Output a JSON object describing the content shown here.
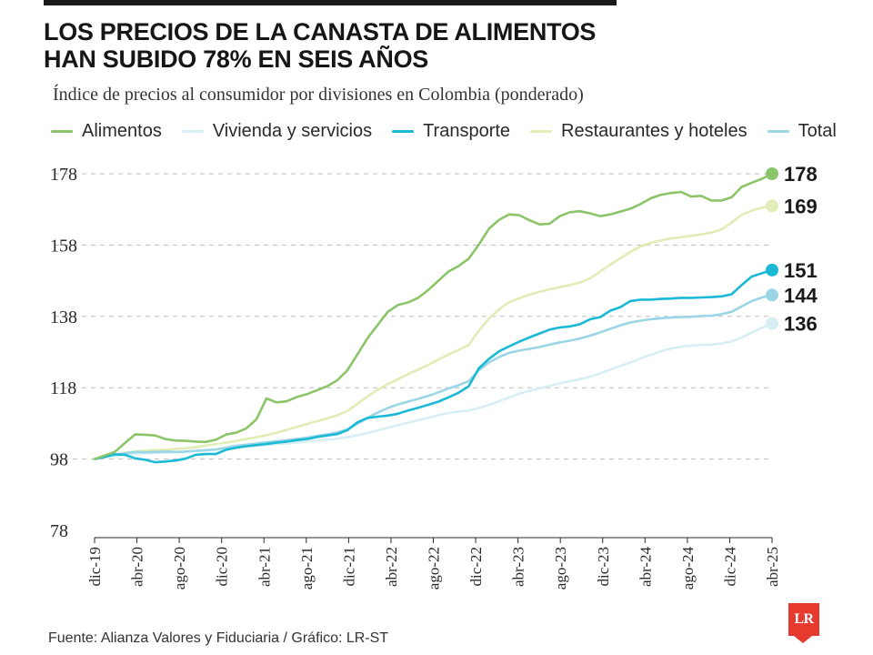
{
  "header": {
    "title_line1": "LOS PRECIOS DE LA CANASTA DE ALIMENTOS",
    "title_line2": "HAN SUBIDO 78% EN SEIS AÑOS",
    "subtitle": "Índice de precios al consumidor por divisiones en Colombia (ponderado)"
  },
  "footer": {
    "source": "Fuente: Alianza Valores y Fiduciaria / Gráfico: LR-ST",
    "logo": "LR"
  },
  "colors": {
    "alimentos": "#8cc46a",
    "vivienda": "#d7eef3",
    "transporte": "#1bb9d6",
    "restaurantes": "#e1ecb6",
    "total": "#9bd6e6",
    "grid": "#bdbdbd",
    "text": "#1a1a1a"
  },
  "chart_data": {
    "type": "line",
    "ylim": [
      78,
      178
    ],
    "yticks": [
      78,
      98,
      118,
      138,
      158,
      178
    ],
    "x_tick_labels": [
      "dic-19",
      "abr-20",
      "ago-20",
      "dic-20",
      "abr-21",
      "ago-21",
      "dic-21",
      "abr-22",
      "ago-22",
      "dic-22",
      "abr-23",
      "ago-23",
      "dic-23",
      "abr-24",
      "ago-24",
      "dic-24",
      "abr-25"
    ],
    "x_start": "dic-19",
    "x_end": "abr-25",
    "grid": true,
    "legend_position": "top",
    "series": [
      {
        "name": "Alimentos",
        "key": "alimentos",
        "end_label": "178",
        "values": [
          98.0,
          99.0,
          100.0,
          102.5,
          104.9,
          104.8,
          104.6,
          103.6,
          103.2,
          103.1,
          102.9,
          102.8,
          103.4,
          104.9,
          105.4,
          106.6,
          109.1,
          115.0,
          113.9,
          114.2,
          115.4,
          116.2,
          117.3,
          118.4,
          120.1,
          122.9,
          127.4,
          131.9,
          135.6,
          139.3,
          141.2,
          141.9,
          143.2,
          145.4,
          148.0,
          150.6,
          152.1,
          154.2,
          158.1,
          162.6,
          165.1,
          166.6,
          166.4,
          165.0,
          163.8,
          164.0,
          166.1,
          167.2,
          167.5,
          166.9,
          166.1,
          166.6,
          167.4,
          168.2,
          169.5,
          171.1,
          172.1,
          172.6,
          172.9,
          171.6,
          171.8,
          170.5,
          170.5,
          171.4,
          174.3,
          175.5,
          176.6,
          178.0
        ]
      },
      {
        "name": "Vivienda y servicios",
        "key": "vivienda",
        "end_label": "136",
        "values": [
          98.0,
          98.4,
          98.8,
          99.2,
          99.5,
          99.6,
          99.7,
          99.8,
          99.9,
          100.1,
          100.2,
          100.4,
          100.6,
          100.9,
          101.2,
          101.5,
          101.8,
          102.0,
          102.2,
          102.4,
          102.6,
          102.9,
          103.2,
          103.4,
          103.7,
          104.1,
          104.7,
          105.3,
          106.0,
          106.8,
          107.5,
          108.2,
          108.9,
          109.6,
          110.3,
          110.9,
          111.3,
          111.6,
          112.3,
          113.2,
          114.2,
          115.3,
          116.3,
          117.1,
          117.8,
          118.5,
          119.2,
          119.8,
          120.4,
          121.1,
          122.0,
          123.1,
          124.1,
          125.1,
          126.2,
          127.2,
          128.2,
          129.0,
          129.5,
          129.8,
          130.0,
          130.1,
          130.4,
          131.0,
          132.0,
          133.5,
          134.8,
          136.0
        ]
      },
      {
        "name": "Transporte",
        "key": "transporte",
        "end_label": "151",
        "values": [
          98.0,
          98.6,
          99.3,
          99.2,
          98.2,
          97.8,
          97.1,
          97.3,
          97.6,
          98.1,
          99.2,
          99.4,
          99.4,
          100.6,
          101.2,
          101.6,
          101.9,
          102.2,
          102.6,
          102.9,
          103.3,
          103.6,
          104.2,
          104.6,
          105.0,
          106.1,
          108.3,
          109.5,
          109.9,
          110.2,
          110.7,
          111.6,
          112.4,
          113.2,
          114.1,
          115.3,
          116.6,
          118.4,
          123.4,
          126.1,
          128.2,
          129.6,
          130.9,
          132.1,
          133.2,
          134.3,
          134.9,
          135.2,
          135.8,
          137.2,
          137.8,
          139.6,
          140.6,
          142.3,
          142.7,
          142.7,
          142.9,
          143.0,
          143.2,
          143.2,
          143.3,
          143.4,
          143.6,
          144.2,
          146.8,
          149.2,
          150.1,
          151.0
        ]
      },
      {
        "name": "Restaurantes y hoteles",
        "key": "restaurantes",
        "end_label": "169",
        "values": [
          98.0,
          98.7,
          99.3,
          99.8,
          100.1,
          100.3,
          100.5,
          100.6,
          100.8,
          101.0,
          101.3,
          101.8,
          102.2,
          102.6,
          103.1,
          103.6,
          104.1,
          104.7,
          105.4,
          106.2,
          107.0,
          107.8,
          108.6,
          109.4,
          110.3,
          111.5,
          113.5,
          115.6,
          117.4,
          119.0,
          120.4,
          121.8,
          123.1,
          124.4,
          125.9,
          127.3,
          128.6,
          130.0,
          134.0,
          137.4,
          140.0,
          142.0,
          143.1,
          144.1,
          144.9,
          145.6,
          146.2,
          146.8,
          147.5,
          148.7,
          150.6,
          152.5,
          154.3,
          156.1,
          157.6,
          158.6,
          159.3,
          159.9,
          160.2,
          160.6,
          161.0,
          161.5,
          162.4,
          164.3,
          166.5,
          167.7,
          168.5,
          169.0
        ]
      },
      {
        "name": "Total",
        "key": "total",
        "end_label": "144",
        "values": [
          98.0,
          98.6,
          99.3,
          99.6,
          100.0,
          99.9,
          100.0,
          100.1,
          100.0,
          100.1,
          100.3,
          100.5,
          100.7,
          101.2,
          101.7,
          102.0,
          102.4,
          102.7,
          103.0,
          103.3,
          103.6,
          104.0,
          104.5,
          104.9,
          105.5,
          106.3,
          107.9,
          109.6,
          111.0,
          112.3,
          113.3,
          114.1,
          114.9,
          115.7,
          116.7,
          117.8,
          118.7,
          119.8,
          122.9,
          125.1,
          126.6,
          127.8,
          128.4,
          128.9,
          129.4,
          130.1,
          130.7,
          131.2,
          131.8,
          132.6,
          133.5,
          134.5,
          135.5,
          136.3,
          136.8,
          137.2,
          137.5,
          137.7,
          137.8,
          137.9,
          138.1,
          138.2,
          138.6,
          139.3,
          140.8,
          142.3,
          143.3,
          144.0
        ]
      }
    ]
  }
}
